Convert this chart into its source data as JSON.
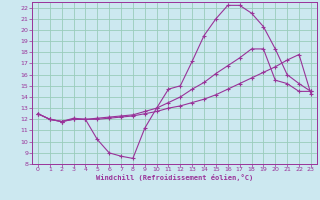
{
  "xlabel": "Windchill (Refroidissement éolien,°C)",
  "bg_color": "#cce8f0",
  "grid_color": "#99ccbb",
  "line_color": "#993399",
  "xlim": [
    -0.5,
    23.5
  ],
  "ylim": [
    8,
    22.5
  ],
  "xticks": [
    0,
    1,
    2,
    3,
    4,
    5,
    6,
    7,
    8,
    9,
    10,
    11,
    12,
    13,
    14,
    15,
    16,
    17,
    18,
    19,
    20,
    21,
    22,
    23
  ],
  "yticks": [
    8,
    9,
    10,
    11,
    12,
    13,
    14,
    15,
    16,
    17,
    18,
    19,
    20,
    21,
    22
  ],
  "curve1_x": [
    0,
    1,
    2,
    3,
    4,
    5,
    6,
    7,
    8,
    9,
    10,
    11,
    12,
    13,
    14,
    15,
    16,
    17,
    18,
    19,
    20,
    21,
    22,
    23
  ],
  "curve1_y": [
    12.5,
    12.0,
    11.8,
    12.1,
    12.0,
    10.2,
    9.0,
    8.7,
    8.5,
    11.2,
    13.0,
    14.7,
    15.0,
    17.2,
    19.5,
    21.0,
    22.2,
    22.2,
    21.5,
    20.3,
    18.3,
    16.0,
    15.2,
    14.5
  ],
  "curve2_x": [
    0,
    1,
    2,
    3,
    4,
    5,
    6,
    7,
    8,
    9,
    10,
    11,
    12,
    13,
    14,
    15,
    16,
    17,
    18,
    19,
    20,
    21,
    22,
    23
  ],
  "curve2_y": [
    12.5,
    12.0,
    11.8,
    12.0,
    12.0,
    12.0,
    12.1,
    12.2,
    12.3,
    12.5,
    12.7,
    13.0,
    13.2,
    13.5,
    13.8,
    14.2,
    14.7,
    15.2,
    15.7,
    16.2,
    16.7,
    17.3,
    17.8,
    14.3
  ],
  "curve3_x": [
    0,
    1,
    2,
    3,
    4,
    5,
    6,
    7,
    8,
    9,
    10,
    11,
    12,
    13,
    14,
    15,
    16,
    17,
    18,
    19,
    20,
    21,
    22,
    23
  ],
  "curve3_y": [
    12.5,
    12.0,
    11.8,
    12.0,
    12.0,
    12.1,
    12.2,
    12.3,
    12.4,
    12.7,
    13.0,
    13.5,
    14.0,
    14.7,
    15.3,
    16.1,
    16.8,
    17.5,
    18.3,
    18.3,
    15.5,
    15.2,
    14.5,
    14.5
  ]
}
